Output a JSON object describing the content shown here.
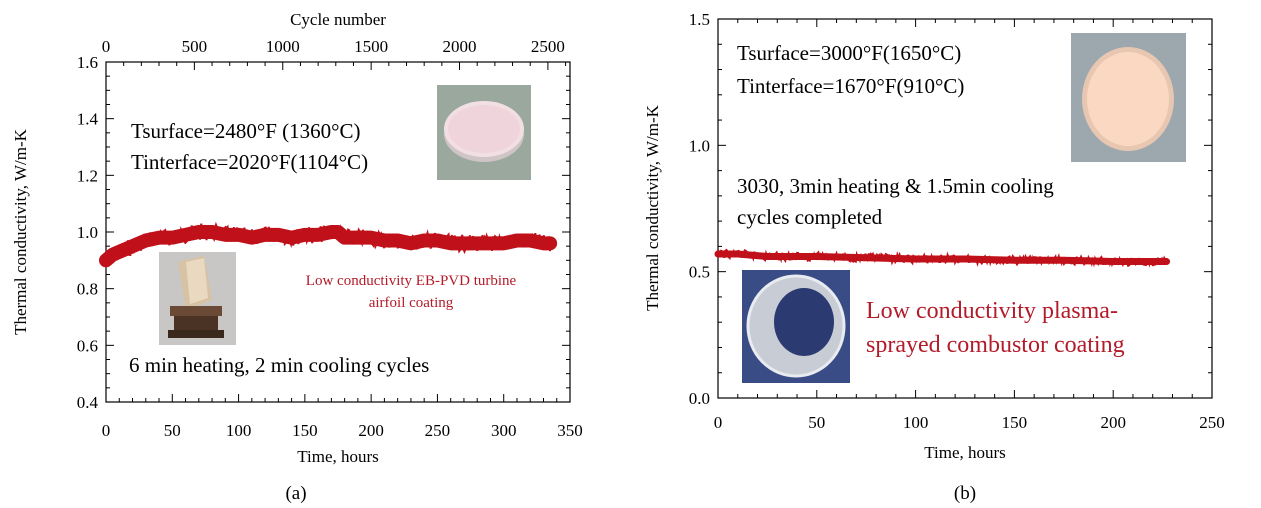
{
  "colors": {
    "series": "#c0101a",
    "annotation_red": "#b31b2a",
    "axis": "#000000"
  },
  "chart_data": [
    {
      "type": "line",
      "panel_label": "(a)",
      "xlabel": "Time, hours",
      "ylabel": "Thermal conductivity, W/m-K",
      "x2label": "Cycle number",
      "xlim": [
        0,
        350
      ],
      "ylim": [
        0.4,
        1.6
      ],
      "x2lim": [
        0,
        2625
      ],
      "xticks": [
        0,
        50,
        100,
        150,
        200,
        250,
        300,
        350
      ],
      "yticks": [
        0.4,
        0.6,
        0.8,
        1.0,
        1.2,
        1.4,
        1.6
      ],
      "x2ticks": [
        0,
        500,
        1000,
        1500,
        2000,
        2500
      ],
      "ytick_labels": [
        "0.4",
        "0.6",
        "0.8",
        "1.0",
        "1.2",
        "1.4",
        "1.6"
      ],
      "xtick_labels": [
        "0",
        "50",
        "100",
        "150",
        "200",
        "250",
        "300",
        "350"
      ],
      "x2tick_labels": [
        "0",
        "500",
        "1000",
        "1500",
        "2000",
        "2500"
      ],
      "series": [
        {
          "x": [
            0,
            5,
            10,
            20,
            30,
            40,
            50,
            60,
            70,
            80,
            90,
            100,
            110,
            120,
            130,
            140,
            150,
            160,
            170,
            175,
            180,
            190,
            200,
            210,
            220,
            230,
            240,
            250,
            260,
            270,
            280,
            290,
            300,
            310,
            320,
            330,
            335
          ],
          "y": [
            0.9,
            0.92,
            0.93,
            0.95,
            0.97,
            0.98,
            0.98,
            0.99,
            1.0,
            1.0,
            0.99,
            0.99,
            0.98,
            0.99,
            0.99,
            0.98,
            0.99,
            0.99,
            1.0,
            1.0,
            0.98,
            0.98,
            0.98,
            0.97,
            0.97,
            0.96,
            0.97,
            0.97,
            0.96,
            0.96,
            0.96,
            0.96,
            0.96,
            0.97,
            0.97,
            0.96,
            0.96
          ]
        }
      ],
      "annotations": [
        {
          "id": "conditions1",
          "text": "Tsurface=2480°F (1360°C)"
        },
        {
          "id": "conditions2",
          "text": "Tinterface=2020°F(1104°C)"
        },
        {
          "id": "coating1",
          "text": "Low conductivity EB-PVD turbine"
        },
        {
          "id": "coating2",
          "text": "airfoil coating"
        },
        {
          "id": "cycles",
          "text": "6 min heating, 2 min cooling cycles"
        }
      ]
    },
    {
      "type": "line",
      "panel_label": "(b)",
      "xlabel": "Time, hours",
      "ylabel": "Thermal conductivity,  W/m-K",
      "xlim": [
        0,
        250
      ],
      "ylim": [
        0,
        1.5
      ],
      "xticks": [
        0,
        50,
        100,
        150,
        200,
        250
      ],
      "yticks": [
        0,
        0.5,
        1.0,
        1.5
      ],
      "ytick_labels": [
        "0.0",
        "0.5",
        "1.0",
        "1.5"
      ],
      "xtick_labels": [
        "0",
        "50",
        "100",
        "150",
        "200",
        "250"
      ],
      "series": [
        {
          "x": [
            0,
            10,
            25,
            50,
            75,
            100,
            125,
            150,
            175,
            200,
            227
          ],
          "y": [
            0.57,
            0.57,
            0.56,
            0.56,
            0.555,
            0.55,
            0.55,
            0.545,
            0.545,
            0.54,
            0.54
          ]
        }
      ],
      "annotations": [
        {
          "id": "conditions1",
          "text": "Tsurface=3000°F(1650°C)"
        },
        {
          "id": "conditions2",
          "text": "Tinterface=1670°F(910°C)"
        },
        {
          "id": "cycles1",
          "text": "3030, 3min heating & 1.5min cooling"
        },
        {
          "id": "cycles2",
          "text": "cycles completed"
        },
        {
          "id": "coating1",
          "text": "Low conductivity plasma-"
        },
        {
          "id": "coating2",
          "text": "sprayed combustor coating"
        }
      ]
    }
  ]
}
